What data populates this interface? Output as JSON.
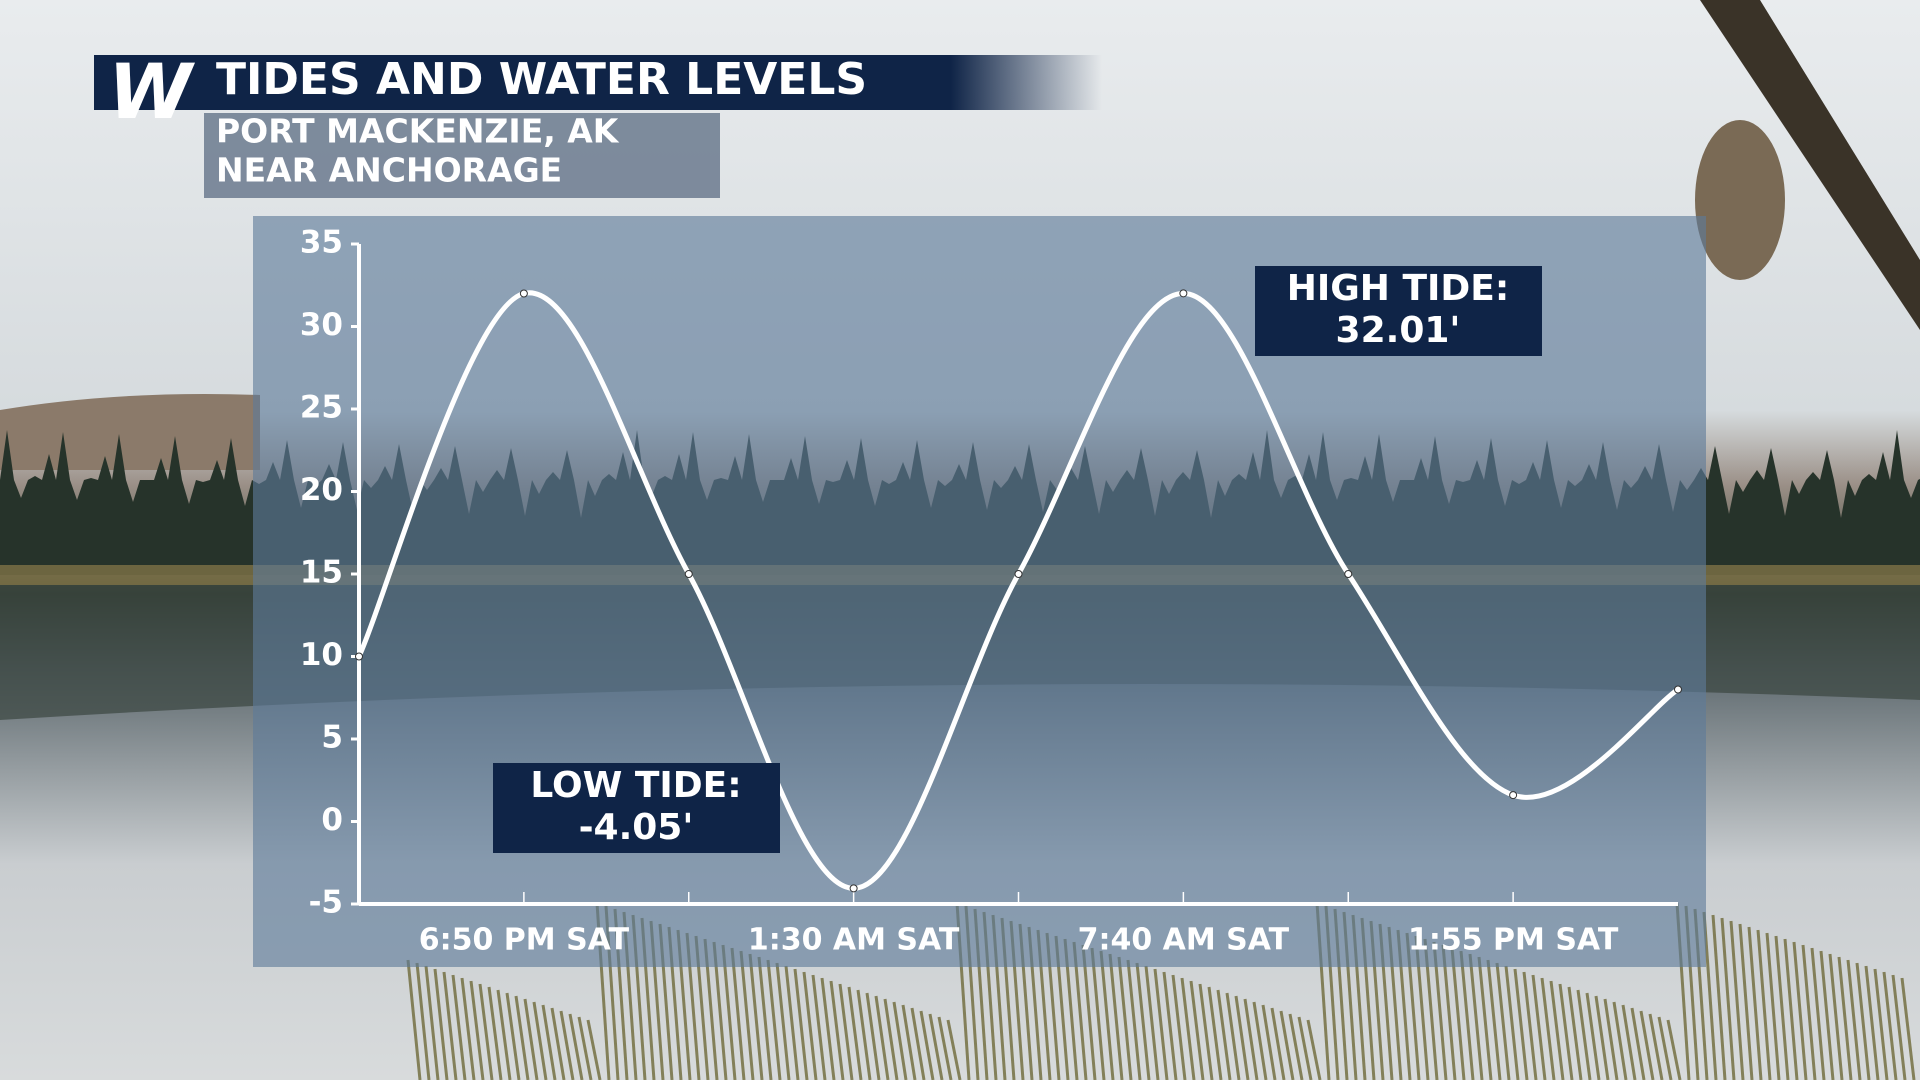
{
  "chart_data": {
    "type": "line",
    "logo": "W",
    "title": "TIDES AND WATER LEVELS",
    "subtitle": [
      "PORT MACKENZIE, AK",
      "NEAR ANCHORAGE"
    ],
    "categories": [
      null,
      "6:50 PM SAT",
      null,
      "1:30 AM SAT",
      null,
      "7:40 AM SAT",
      null,
      "1:55 PM SAT",
      null
    ],
    "values": [
      10,
      32,
      15,
      -4.05,
      15,
      32.01,
      15,
      1.6,
      8
    ],
    "color": "#ffffff",
    "ylim": [
      -5,
      35
    ],
    "yticks": [
      -5,
      0,
      5,
      10,
      15,
      20,
      25,
      30,
      35
    ],
    "annotations": [
      {
        "lines": [
          "HIGH TIDE:",
          "32.01'"
        ]
      },
      {
        "lines": [
          "LOW TIDE:",
          "-4.05'"
        ]
      }
    ]
  }
}
